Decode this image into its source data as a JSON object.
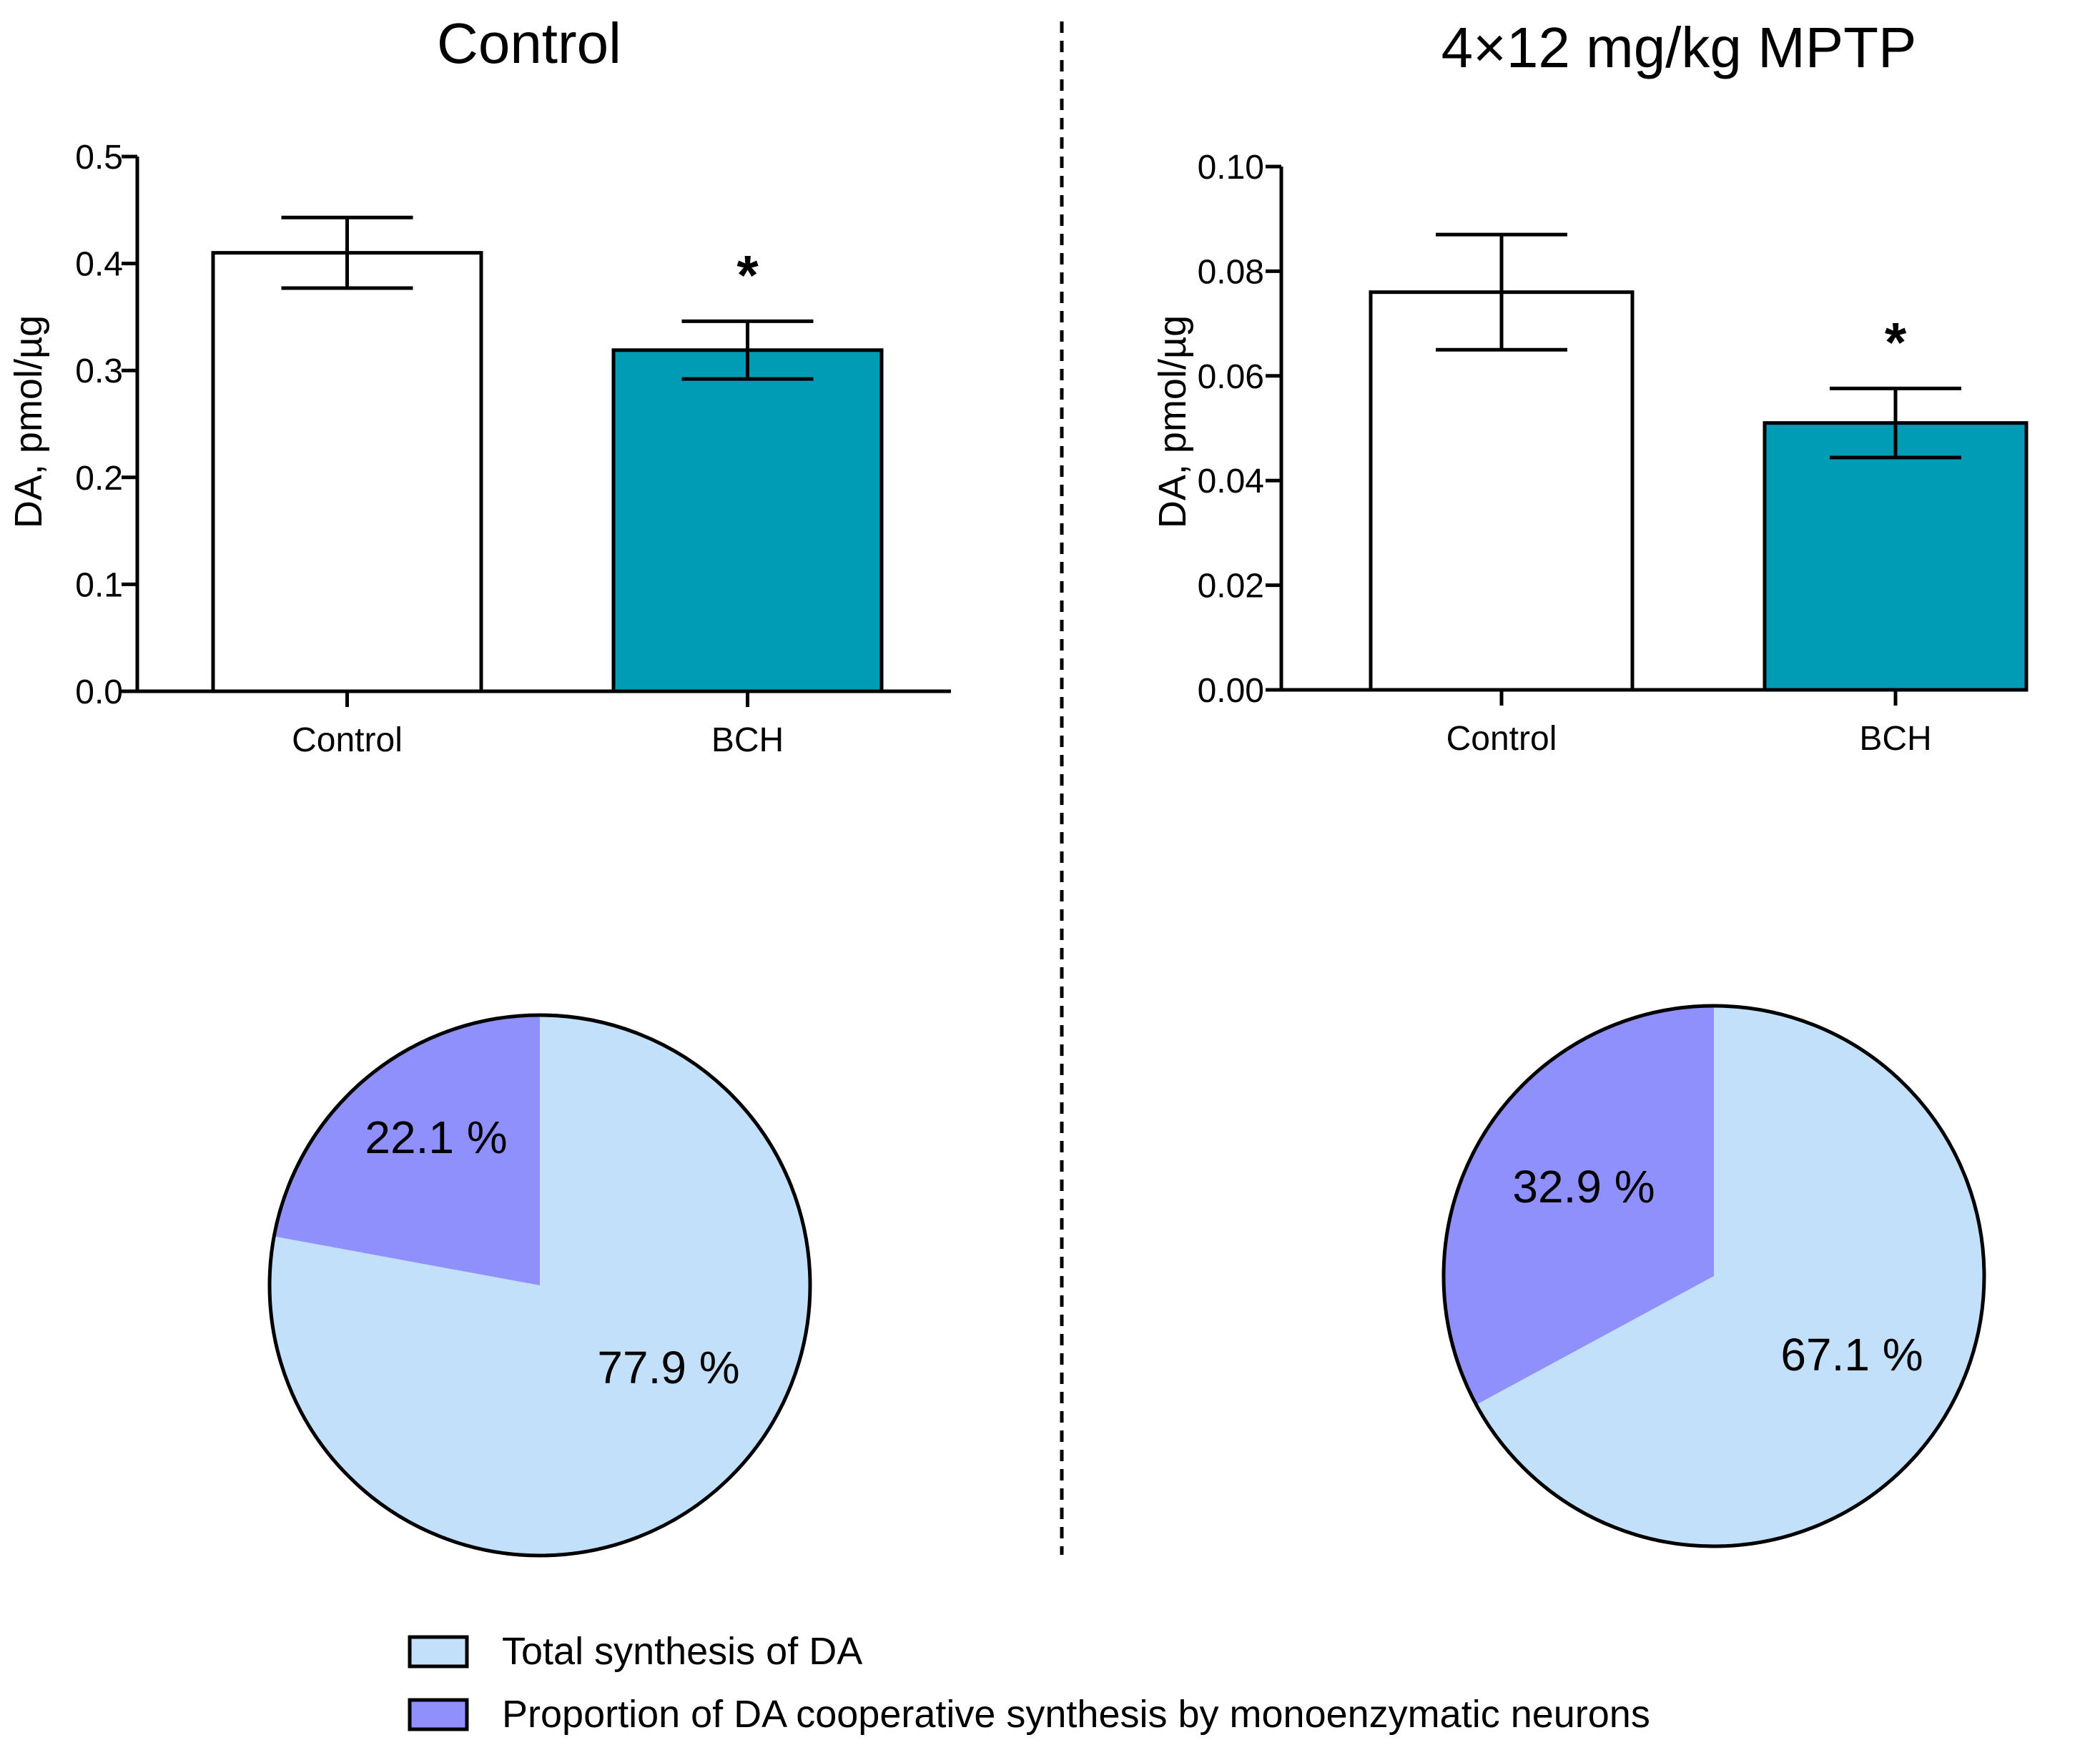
{
  "colors": {
    "bch": "#009bb5",
    "control_bar": "#ffffff",
    "total_synthesis": "#c2e0fa",
    "monoenzymatic": "#8f90fb",
    "ink": "#000000"
  },
  "panels": {
    "left_title": "Control",
    "right_title": "4×12 mg/kg MPTP"
  },
  "legend": {
    "items": [
      {
        "label": "Total synthesis of DA",
        "color": "#c2e0fa"
      },
      {
        "label": "Proportion of DA cooperative synthesis by monoenzymatic neurons",
        "color": "#8f90fb"
      }
    ]
  },
  "chart_data": [
    {
      "type": "bar",
      "panel": "Control",
      "categories": [
        "Control",
        "BCH"
      ],
      "values": [
        0.41,
        0.319
      ],
      "errors": [
        0.033,
        0.027
      ],
      "colors": [
        "#ffffff",
        "#009bb5"
      ],
      "significance": [
        "",
        "*"
      ],
      "ylabel": "DA, pmol/µg",
      "ylim": [
        0,
        0.5
      ],
      "yticks": [
        "0.0",
        "0.1",
        "0.2",
        "0.3",
        "0.4",
        "0.5"
      ],
      "ytick_values": [
        0,
        0.1,
        0.2,
        0.3,
        0.4,
        0.5
      ]
    },
    {
      "type": "bar",
      "panel": "4×12 mg/kg MPTP",
      "categories": [
        "Control",
        "BCH"
      ],
      "values": [
        0.076,
        0.051
      ],
      "errors": [
        0.011,
        0.0066
      ],
      "colors": [
        "#ffffff",
        "#009bb5"
      ],
      "significance": [
        "",
        "*"
      ],
      "ylabel": "DA, pmol/µg",
      "ylim": [
        0,
        0.1
      ],
      "yticks": [
        "0.00",
        "0.02",
        "0.04",
        "0.06",
        "0.08",
        "0.10"
      ],
      "ytick_values": [
        0,
        0.02,
        0.04,
        0.06,
        0.08,
        0.1
      ]
    },
    {
      "type": "pie",
      "panel": "Control",
      "slices": [
        {
          "label": "77.9 %",
          "value": 77.9,
          "series": "Total synthesis of DA",
          "color": "#c2e0fa"
        },
        {
          "label": "22.1 %",
          "value": 22.1,
          "series": "Proportion of DA cooperative synthesis by monoenzymatic neurons",
          "color": "#8f90fb"
        }
      ]
    },
    {
      "type": "pie",
      "panel": "4×12 mg/kg MPTP",
      "slices": [
        {
          "label": "67.1 %",
          "value": 67.1,
          "series": "Total synthesis of DA",
          "color": "#c2e0fa"
        },
        {
          "label": "32.9 %",
          "value": 32.9,
          "series": "Proportion of DA cooperative synthesis by monoenzymatic neurons",
          "color": "#8f90fb"
        }
      ]
    }
  ]
}
